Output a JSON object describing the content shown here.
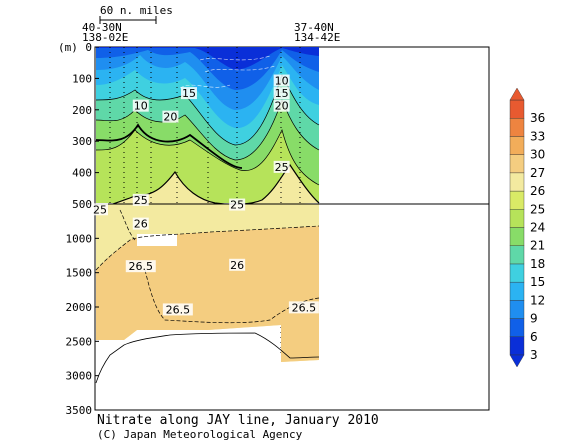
{
  "chart_data": {
    "type": "heatmap",
    "title": "Nitrate along JAY line, January 2010",
    "credit": "(C) Japan Meteorological Agency",
    "ylabel": "(m)",
    "scale_label": "60 n. miles",
    "stations": {
      "left": [
        "40-30N",
        "138-02E"
      ],
      "right": [
        "37-40N",
        "134-42E"
      ]
    },
    "y_ticks_upper": [
      "0",
      "100",
      "200",
      "300",
      "400",
      "500"
    ],
    "y_ticks_lower": [
      "1000",
      "1500",
      "2000",
      "2500",
      "3000",
      "3500"
    ],
    "y_split_depth_m": 500,
    "ylim_upper": [
      0,
      500
    ],
    "ylim_lower": [
      500,
      3500
    ],
    "colorbar": {
      "levels": [
        3,
        6,
        9,
        12,
        15,
        18,
        21,
        24,
        25,
        26,
        27,
        30,
        33,
        36
      ],
      "colors": [
        "#0a2fd8",
        "#1060e8",
        "#1f8ef0",
        "#2bb3f2",
        "#3fd0e0",
        "#5fd8a8",
        "#88dc68",
        "#b6e35a",
        "#d9ea66",
        "#f3eaa0",
        "#f4cd80",
        "#f2ad5a",
        "#ee8440",
        "#e85a30"
      ]
    },
    "contour_labels_upper": [
      {
        "value": "10",
        "x_km": 11,
        "depth_m": 190
      },
      {
        "value": "20",
        "x_km": 19,
        "depth_m": 225
      },
      {
        "value": "15",
        "x_km": 24,
        "depth_m": 150
      },
      {
        "value": "10",
        "x_km": 49,
        "depth_m": 110
      },
      {
        "value": "15",
        "x_km": 49,
        "depth_m": 150
      },
      {
        "value": "20",
        "x_km": 49,
        "depth_m": 190
      },
      {
        "value": "25",
        "x_km": 49,
        "depth_m": 385
      },
      {
        "value": "25",
        "x_km": 11,
        "depth_m": 490
      },
      {
        "value": "25",
        "x_km": 37,
        "depth_m": 505
      },
      {
        "value": "25",
        "x_km": 0,
        "depth_m": 520
      }
    ],
    "contour_labels_lower": [
      {
        "value": "26",
        "x_km": 11,
        "depth_m": 800
      },
      {
        "value": "26.5",
        "x_km": 11,
        "depth_m": 1420
      },
      {
        "value": "26",
        "x_km": 37,
        "depth_m": 1400
      },
      {
        "value": "26.5",
        "x_km": 21,
        "depth_m": 2050
      },
      {
        "value": "26.5",
        "x_km": 55,
        "depth_m": 2020
      }
    ]
  }
}
